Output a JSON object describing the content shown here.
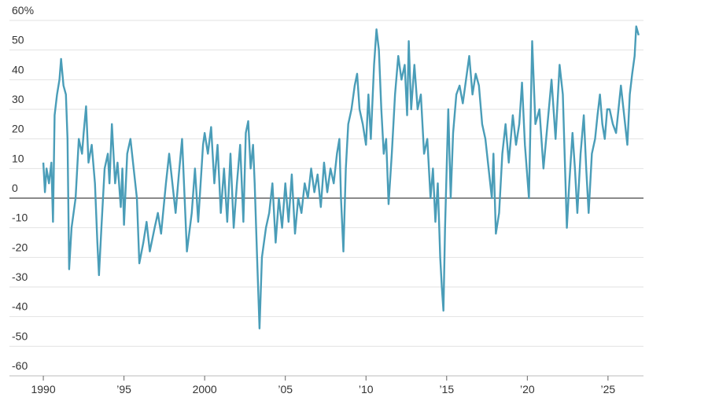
{
  "chart_data": {
    "type": "line",
    "x": [
      1990.0,
      1990.1,
      1990.2,
      1990.35,
      1990.5,
      1990.6,
      1990.7,
      1990.85,
      1991.0,
      1991.1,
      1991.25,
      1991.4,
      1991.5,
      1991.6,
      1991.75,
      1992.0,
      1992.2,
      1992.4,
      1992.5,
      1992.65,
      1992.8,
      1993.0,
      1993.2,
      1993.35,
      1993.45,
      1993.6,
      1993.8,
      1994.0,
      1994.1,
      1994.25,
      1994.45,
      1994.6,
      1994.8,
      1994.9,
      1995.0,
      1995.2,
      1995.4,
      1995.6,
      1995.8,
      1995.95,
      1996.2,
      1996.4,
      1996.6,
      1996.9,
      1997.1,
      1997.3,
      1997.6,
      1997.8,
      1998.0,
      1998.2,
      1998.4,
      1998.6,
      1998.9,
      1999.2,
      1999.4,
      1999.6,
      1999.9,
      2000.0,
      2000.2,
      2000.4,
      2000.6,
      2000.8,
      2001.0,
      2001.2,
      2001.4,
      2001.6,
      2001.8,
      2002.0,
      2002.2,
      2002.4,
      2002.55,
      2002.7,
      2002.85,
      2003.0,
      2003.1,
      2003.25,
      2003.4,
      2003.55,
      2003.8,
      2004.0,
      2004.2,
      2004.4,
      2004.6,
      2004.8,
      2005.0,
      2005.2,
      2005.4,
      2005.6,
      2005.8,
      2006.0,
      2006.2,
      2006.4,
      2006.6,
      2006.8,
      2007.0,
      2007.2,
      2007.4,
      2007.6,
      2007.8,
      2008.0,
      2008.2,
      2008.35,
      2008.45,
      2008.6,
      2008.75,
      2008.9,
      2009.1,
      2009.3,
      2009.45,
      2009.6,
      2009.8,
      2010.0,
      2010.15,
      2010.3,
      2010.5,
      2010.65,
      2010.8,
      2010.95,
      2011.1,
      2011.25,
      2011.4,
      2011.6,
      2011.8,
      2012.0,
      2012.2,
      2012.4,
      2012.55,
      2012.65,
      2012.8,
      2013.0,
      2013.2,
      2013.4,
      2013.6,
      2013.8,
      2014.0,
      2014.15,
      2014.3,
      2014.45,
      2014.6,
      2014.7,
      2014.8,
      2014.9,
      2015.0,
      2015.1,
      2015.25,
      2015.4,
      2015.6,
      2015.8,
      2016.0,
      2016.4,
      2016.6,
      2016.8,
      2017.0,
      2017.2,
      2017.4,
      2017.6,
      2017.8,
      2017.9,
      2018.05,
      2018.25,
      2018.45,
      2018.65,
      2018.85,
      2019.1,
      2019.3,
      2019.5,
      2019.67,
      2019.85,
      2020.1,
      2020.3,
      2020.5,
      2020.75,
      2021.0,
      2021.25,
      2021.5,
      2021.75,
      2022.0,
      2022.2,
      2022.45,
      2022.6,
      2022.8,
      2022.95,
      2023.1,
      2023.3,
      2023.5,
      2023.65,
      2023.8,
      2024.0,
      2024.2,
      2024.35,
      2024.5,
      2024.65,
      2024.8,
      2024.95,
      2025.1,
      2025.3,
      2025.5,
      2025.65,
      2025.8,
      2026.0,
      2026.2,
      2026.35,
      2026.5,
      2026.65,
      2026.75,
      2026.9
    ],
    "values": [
      12,
      2,
      10,
      5,
      12,
      -8,
      28,
      35,
      40,
      47,
      38,
      35,
      20,
      -24,
      -10,
      0,
      20,
      15,
      22,
      31,
      12,
      18,
      5,
      -15,
      -26,
      -10,
      10,
      15,
      5,
      25,
      5,
      12,
      -3,
      10,
      -9,
      15,
      20,
      10,
      0,
      -22,
      -15,
      -8,
      -18,
      -10,
      -5,
      -12,
      5,
      15,
      5,
      -5,
      8,
      20,
      -18,
      -5,
      10,
      -8,
      18,
      22,
      15,
      24,
      5,
      18,
      -5,
      10,
      -8,
      15,
      -10,
      5,
      18,
      -8,
      22,
      26,
      10,
      18,
      5,
      -20,
      -44,
      -20,
      -10,
      -5,
      5,
      -15,
      0,
      -10,
      5,
      -8,
      8,
      -12,
      0,
      -5,
      5,
      0,
      10,
      2,
      8,
      -3,
      12,
      2,
      10,
      5,
      15,
      20,
      0,
      -18,
      10,
      25,
      30,
      38,
      42,
      30,
      25,
      18,
      35,
      20,
      45,
      57,
      50,
      30,
      15,
      20,
      -2,
      15,
      35,
      48,
      40,
      45,
      28,
      53,
      30,
      45,
      30,
      35,
      15,
      20,
      0,
      10,
      -8,
      5,
      -20,
      -30,
      -38,
      -10,
      10,
      30,
      0,
      22,
      35,
      38,
      32,
      48,
      35,
      42,
      38,
      25,
      20,
      10,
      0,
      15,
      -12,
      -5,
      15,
      25,
      12,
      28,
      18,
      25,
      39,
      18,
      0,
      53,
      25,
      30,
      10,
      25,
      40,
      20,
      45,
      35,
      -10,
      5,
      22,
      10,
      -5,
      15,
      28,
      10,
      -5,
      15,
      20,
      28,
      35,
      25,
      20,
      30,
      30,
      25,
      22,
      30,
      38,
      28,
      18,
      35,
      42,
      48,
      58,
      55
    ],
    "color": "#4a9db8",
    "xlim": [
      1987.9,
      2027.2
    ],
    "xticks": [
      {
        "value": 1990,
        "label": "1990"
      },
      {
        "value": 1995,
        "label": "’95"
      },
      {
        "value": 2000,
        "label": "2000"
      },
      {
        "value": 2005,
        "label": "’05"
      },
      {
        "value": 2010,
        "label": "’10"
      },
      {
        "value": 2015,
        "label": "’15"
      },
      {
        "value": 2020,
        "label": "’20"
      },
      {
        "value": 2025,
        "label": "’25"
      }
    ],
    "ylim": [
      -60,
      60
    ],
    "yticks": [
      -60,
      -50,
      -40,
      -30,
      -20,
      -10,
      0,
      10,
      20,
      30,
      40,
      50,
      {
        "value": 60,
        "label": "60%"
      }
    ],
    "grid": true
  }
}
